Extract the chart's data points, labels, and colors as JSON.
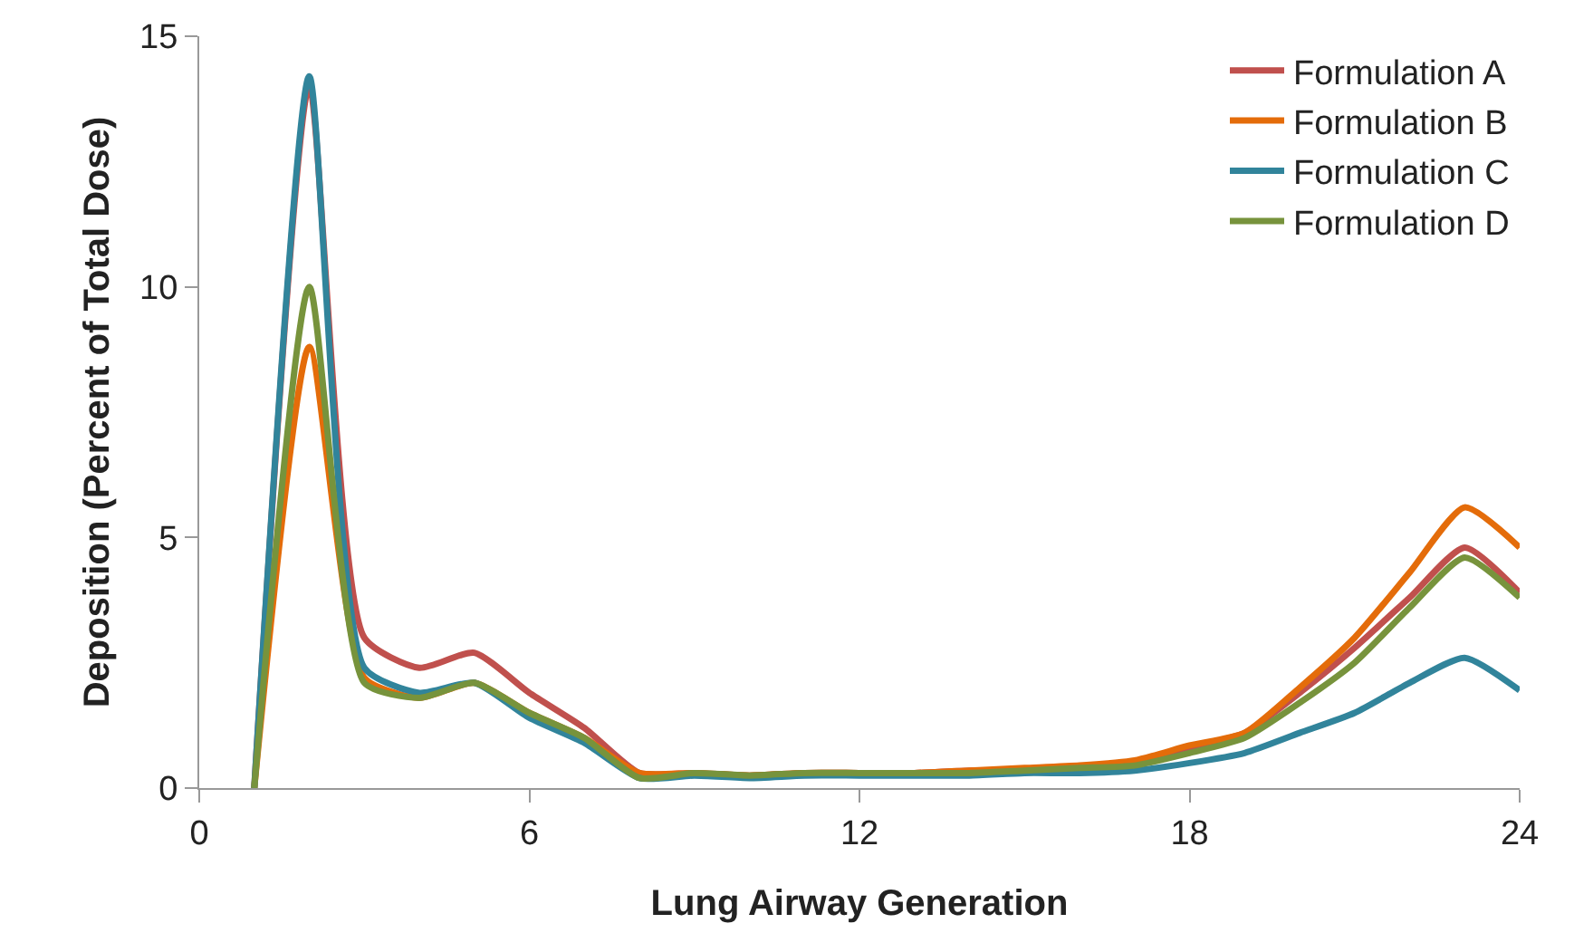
{
  "chart_data": {
    "type": "line",
    "xlabel": "Lung Airway Generation",
    "ylabel": "Deposition (Percent of Total Dose)",
    "x": [
      1,
      2,
      3,
      4,
      5,
      6,
      7,
      8,
      9,
      10,
      11,
      12,
      13,
      14,
      15,
      16,
      17,
      18,
      19,
      20,
      21,
      22,
      23,
      24
    ],
    "series": [
      {
        "name": "Formulation A",
        "color": "#c0504d",
        "values": [
          0,
          14.0,
          3.0,
          2.4,
          2.7,
          1.9,
          1.2,
          0.3,
          0.3,
          0.25,
          0.3,
          0.3,
          0.3,
          0.35,
          0.35,
          0.4,
          0.5,
          0.8,
          1.1,
          1.9,
          2.8,
          3.8,
          4.8,
          3.9
        ]
      },
      {
        "name": "Formulation B",
        "color": "#e46c0a",
        "values": [
          0,
          8.8,
          2.2,
          1.8,
          2.1,
          1.5,
          1.0,
          0.3,
          0.3,
          0.25,
          0.3,
          0.3,
          0.3,
          0.35,
          0.4,
          0.45,
          0.55,
          0.85,
          1.1,
          2.0,
          3.0,
          4.3,
          5.6,
          4.8
        ]
      },
      {
        "name": "Formulation C",
        "color": "#31849b",
        "values": [
          0,
          14.2,
          2.4,
          1.9,
          2.1,
          1.4,
          0.9,
          0.2,
          0.25,
          0.2,
          0.25,
          0.25,
          0.25,
          0.25,
          0.3,
          0.3,
          0.35,
          0.5,
          0.7,
          1.1,
          1.5,
          2.1,
          2.6,
          1.95
        ]
      },
      {
        "name": "Formulation D",
        "color": "#77933c",
        "values": [
          0,
          10.0,
          2.1,
          1.8,
          2.1,
          1.5,
          1.0,
          0.2,
          0.3,
          0.25,
          0.3,
          0.3,
          0.3,
          0.3,
          0.35,
          0.4,
          0.45,
          0.7,
          1.0,
          1.7,
          2.5,
          3.6,
          4.6,
          3.8
        ]
      }
    ],
    "xlim": [
      0,
      24
    ],
    "xticks": [
      0,
      6,
      12,
      18,
      24
    ],
    "ylim": [
      0,
      15
    ],
    "yticks": [
      0,
      5,
      10,
      15
    ],
    "grid": false,
    "legend": "top right",
    "marker": "none",
    "line_style": "solid"
  }
}
